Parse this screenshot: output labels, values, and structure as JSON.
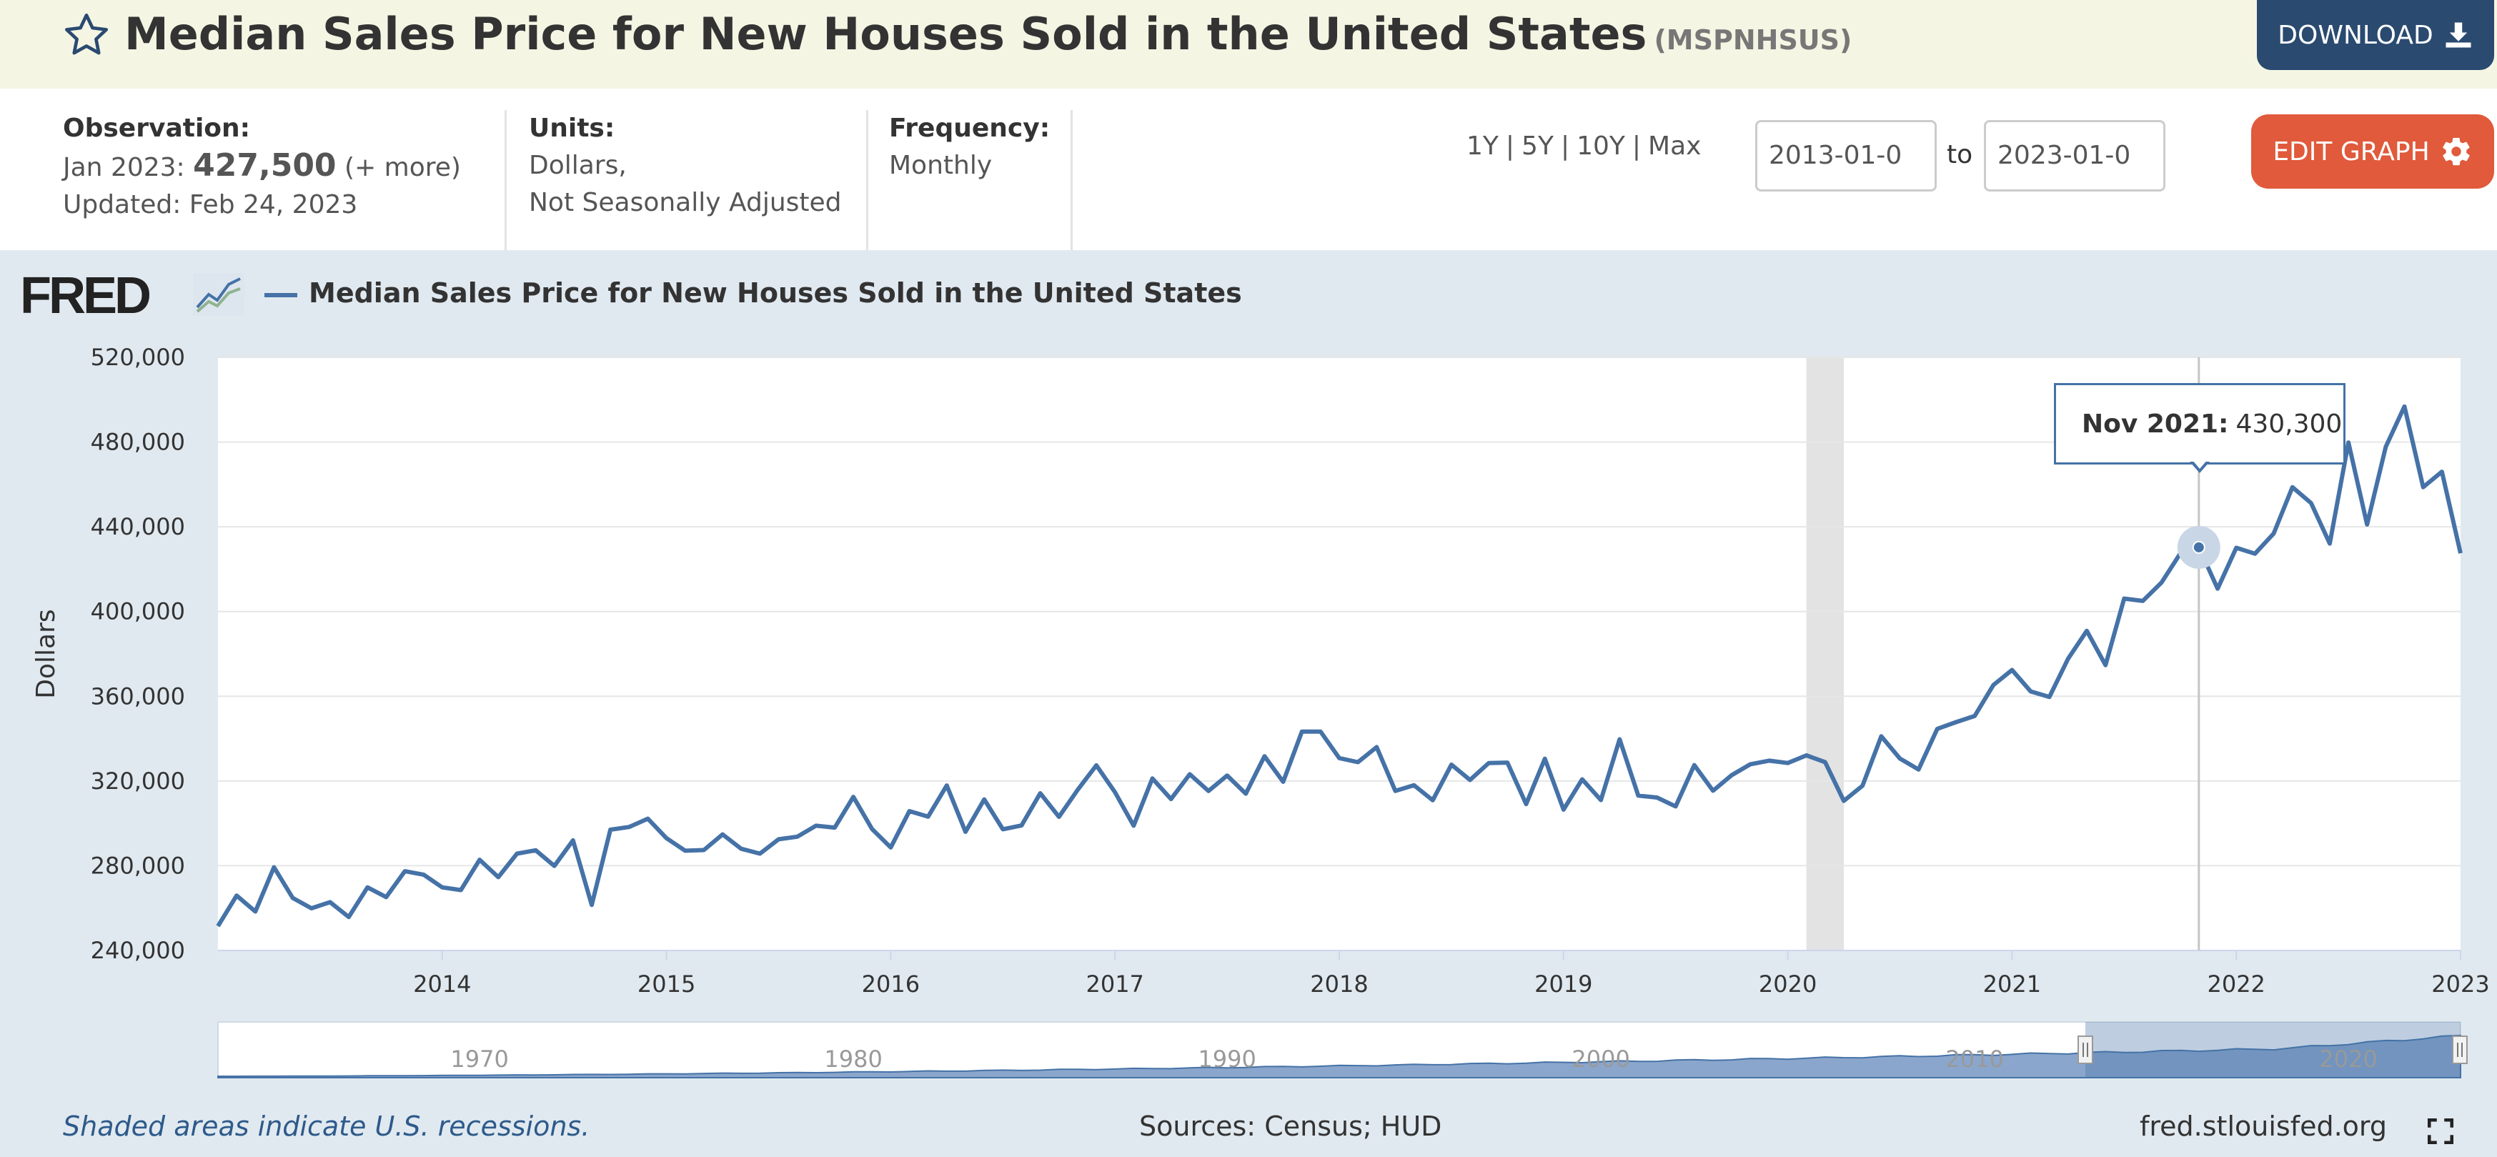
{
  "header": {
    "title": "Median Sales Price for New Houses Sold in the United States",
    "series_id": "(MSPNHSUS)",
    "download_label": "DOWNLOAD"
  },
  "info": {
    "observation_label": "Observation:",
    "observation_date": "Jan 2023:",
    "observation_value": "427,500",
    "observation_more": "(+ more)",
    "updated": "Updated: Feb 24, 2023",
    "units_label": "Units:",
    "units_line1": "Dollars,",
    "units_line2": "Not Seasonally Adjusted",
    "frequency_label": "Frequency:",
    "frequency_value": "Monthly"
  },
  "controls": {
    "range_1y": "1Y",
    "range_5y": "5Y",
    "range_10y": "10Y",
    "range_max": "Max",
    "sep": "|",
    "date_start": "2013-01-0",
    "date_end": "2023-01-0",
    "to_label": "to",
    "edit_label": "EDIT GRAPH"
  },
  "logo": {
    "text": "FRED"
  },
  "legend": {
    "label": "Median Sales Price for New Houses Sold in the United States"
  },
  "tooltip": {
    "date": "Nov 2021:",
    "value": "430,300"
  },
  "footer": {
    "recession_note": "Shaded areas indicate U.S. recessions.",
    "sources": "Sources: Census; HUD",
    "url": "fred.stlouisfed.org"
  },
  "colors": {
    "line": "#4572a7",
    "recession": "#e3e3e3",
    "header_bg": "#f5f5e4",
    "download": "#2a4a70",
    "edit": "#e05a3b"
  },
  "chart_data": {
    "type": "line",
    "title": "Median Sales Price for New Houses Sold in the United States",
    "ylabel": "Dollars",
    "xlabel": "",
    "ylim": [
      240000,
      520000
    ],
    "xlim": [
      2013.0,
      2023.0
    ],
    "yticks": [
      240000,
      280000,
      320000,
      360000,
      400000,
      440000,
      480000,
      520000
    ],
    "ytick_labels": [
      "240,000",
      "280,000",
      "320,000",
      "360,000",
      "400,000",
      "440,000",
      "480,000",
      "520,000"
    ],
    "xticks": [
      2014,
      2015,
      2016,
      2017,
      2018,
      2019,
      2020,
      2021,
      2022,
      2023
    ],
    "xtick_labels": [
      "2014",
      "2015",
      "2016",
      "2017",
      "2018",
      "2019",
      "2020",
      "2021",
      "2022",
      "2023"
    ],
    "recessions": [
      [
        2020.083,
        2020.25
      ]
    ],
    "highlight": {
      "x": 2021.833,
      "y": 430300,
      "label": "Nov 2021"
    },
    "series": [
      {
        "name": "MSPNHSUS",
        "start": "2013-01",
        "frequency": "monthly",
        "values": [
          251500,
          265900,
          258400,
          279300,
          264800,
          259900,
          262800,
          255800,
          269800,
          265200,
          277400,
          275800,
          269800,
          268500,
          282800,
          274600,
          285700,
          287300,
          279900,
          292000,
          261500,
          297000,
          298300,
          302200,
          293000,
          287100,
          287400,
          294800,
          288000,
          285700,
          292500,
          293700,
          298900,
          298000,
          312500,
          297300,
          288600,
          305800,
          303200,
          317900,
          296000,
          311300,
          297200,
          299000,
          314200,
          303100,
          315800,
          327400,
          314700,
          298900,
          321200,
          311500,
          323200,
          315300,
          322600,
          314000,
          331700,
          319600,
          343300,
          343300,
          330800,
          328900,
          336000,
          315300,
          318000,
          310900,
          327700,
          320500,
          328500,
          328700,
          309100,
          330500,
          306500,
          320800,
          311000,
          339700,
          313100,
          312200,
          308000,
          327500,
          315400,
          322800,
          327900,
          329600,
          328500,
          332100,
          328900,
          310600,
          317800,
          341100,
          330600,
          325400,
          344600,
          347800,
          350700,
          365300,
          372400,
          362300,
          359700,
          377700,
          390900,
          374700,
          406100,
          405000,
          413700,
          427400,
          430300,
          410800,
          430100,
          427300,
          436800,
          458700,
          451200,
          432100,
          479800,
          441100,
          477800,
          496800,
          458700,
          466000,
          427500
        ]
      }
    ],
    "navigator": {
      "xtick_labels": [
        "1970",
        "1980",
        "1990",
        "2000",
        "2010",
        "2020"
      ]
    }
  }
}
